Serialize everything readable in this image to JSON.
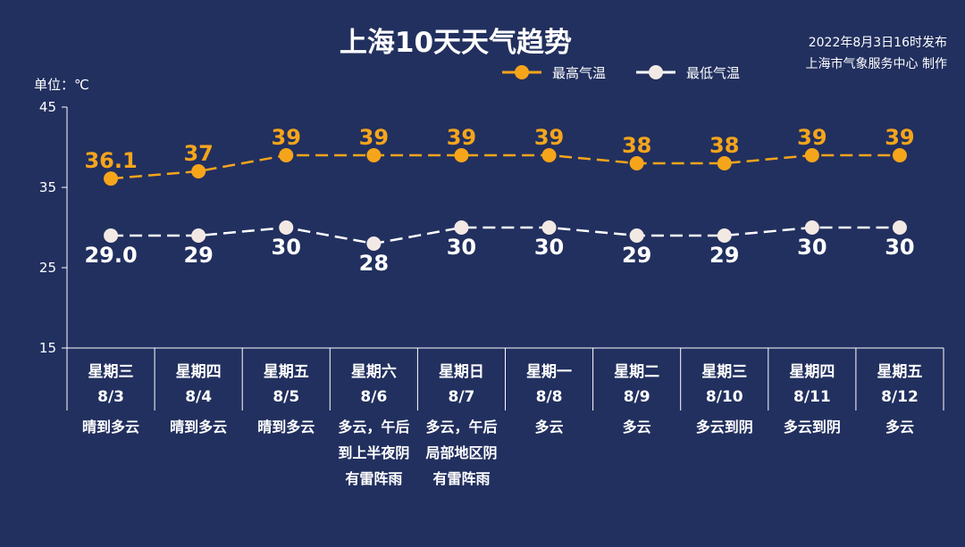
{
  "header": {
    "title": "上海10天天气趋势",
    "publish_time": "2022年8月3日16时发布",
    "publisher": "上海市气象服务中心 制作",
    "unit_label": "单位：℃"
  },
  "colors": {
    "background": "#22305f",
    "high": "#f6a51b",
    "low": "#ffffff",
    "axis": "#ffffff"
  },
  "chart_data": {
    "type": "line",
    "title": "上海10天天气趋势",
    "ylabel": "单位：℃",
    "ylim": [
      15,
      45
    ],
    "yticks": [
      15,
      25,
      35,
      45
    ],
    "grid": false,
    "legend_position": "top-right",
    "categories": [
      "8/3",
      "8/4",
      "8/5",
      "8/6",
      "8/7",
      "8/8",
      "8/9",
      "8/10",
      "8/11",
      "8/12"
    ],
    "weekdays": [
      "星期三",
      "星期四",
      "星期五",
      "星期六",
      "星期日",
      "星期一",
      "星期二",
      "星期三",
      "星期四",
      "星期五"
    ],
    "weather": [
      [
        "晴到多云"
      ],
      [
        "晴到多云"
      ],
      [
        "晴到多云"
      ],
      [
        "多云，午后",
        "到上半夜阴",
        "有雷阵雨"
      ],
      [
        "多云，午后",
        "局部地区阴",
        "有雷阵雨"
      ],
      [
        "多云"
      ],
      [
        "多云"
      ],
      [
        "多云到阴"
      ],
      [
        "多云到阴"
      ],
      [
        "多云"
      ]
    ],
    "series": [
      {
        "name": "最高气温",
        "values": [
          36.1,
          37,
          39,
          39,
          39,
          39,
          38,
          38,
          39,
          39
        ],
        "labels": [
          "36.1",
          "37",
          "39",
          "39",
          "39",
          "39",
          "38",
          "38",
          "39",
          "39"
        ]
      },
      {
        "name": "最低气温",
        "values": [
          29.0,
          29,
          30,
          28,
          30,
          30,
          29,
          29,
          30,
          30
        ],
        "labels": [
          "29.0",
          "29",
          "30",
          "28",
          "30",
          "30",
          "29",
          "29",
          "30",
          "30"
        ]
      }
    ]
  }
}
